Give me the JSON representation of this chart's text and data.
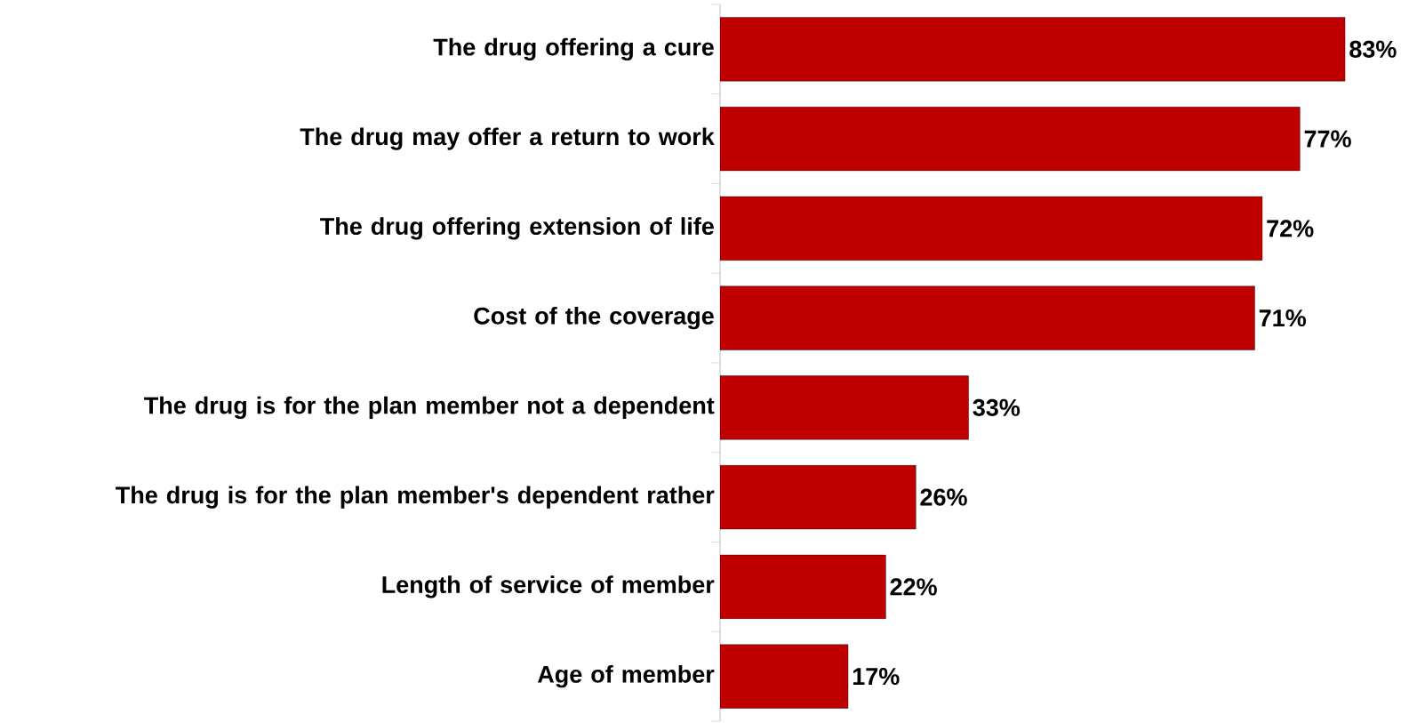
{
  "chart_data": {
    "type": "bar",
    "orientation": "horizontal",
    "categories": [
      "The drug offering a cure",
      "The drug may offer a return to work",
      "The drug offering extension of life",
      "Cost of the coverage",
      "The drug is for the plan member not a dependent",
      "The drug is for the plan member's dependent rather",
      "Length of service of member",
      "Age of member"
    ],
    "values": [
      83,
      77,
      72,
      71,
      33,
      26,
      22,
      17
    ],
    "value_labels": [
      "83%",
      "77%",
      "72%",
      "71%",
      "33%",
      "26%",
      "22%",
      "17%"
    ],
    "color": "#c00000"
  }
}
